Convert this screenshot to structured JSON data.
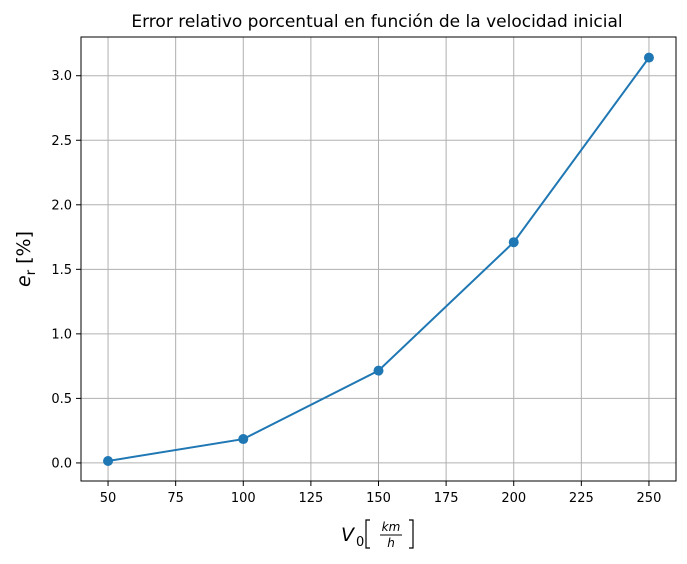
{
  "chart_data": {
    "type": "line",
    "title": "Error relativo porcentual en función de la velocidad inicial",
    "xlabel": {
      "symbol": "V",
      "subscript": "0",
      "unit_numerator": "km",
      "unit_denominator": "h"
    },
    "ylabel": {
      "symbol": "e",
      "subscript": "r",
      "unit": "[%]"
    },
    "x": [
      50,
      100,
      150,
      200,
      250
    ],
    "series": [
      {
        "values": [
          0.015,
          0.185,
          0.715,
          1.71,
          3.14
        ],
        "color": "#1f77b4",
        "markers": true
      }
    ],
    "xlim": [
      40,
      260
    ],
    "ylim": [
      -0.14,
      3.3
    ],
    "xticks": [
      50,
      75,
      100,
      125,
      150,
      175,
      200,
      225,
      250
    ],
    "xtick_labels": [
      "50",
      "75",
      "100",
      "125",
      "150",
      "175",
      "200",
      "225",
      "250"
    ],
    "yticks": [
      0.0,
      0.5,
      1.0,
      1.5,
      2.0,
      2.5,
      3.0
    ],
    "ytick_labels": [
      "0.0",
      "0.5",
      "1.0",
      "1.5",
      "2.0",
      "2.5",
      "3.0"
    ],
    "grid": true,
    "legend": "none"
  }
}
